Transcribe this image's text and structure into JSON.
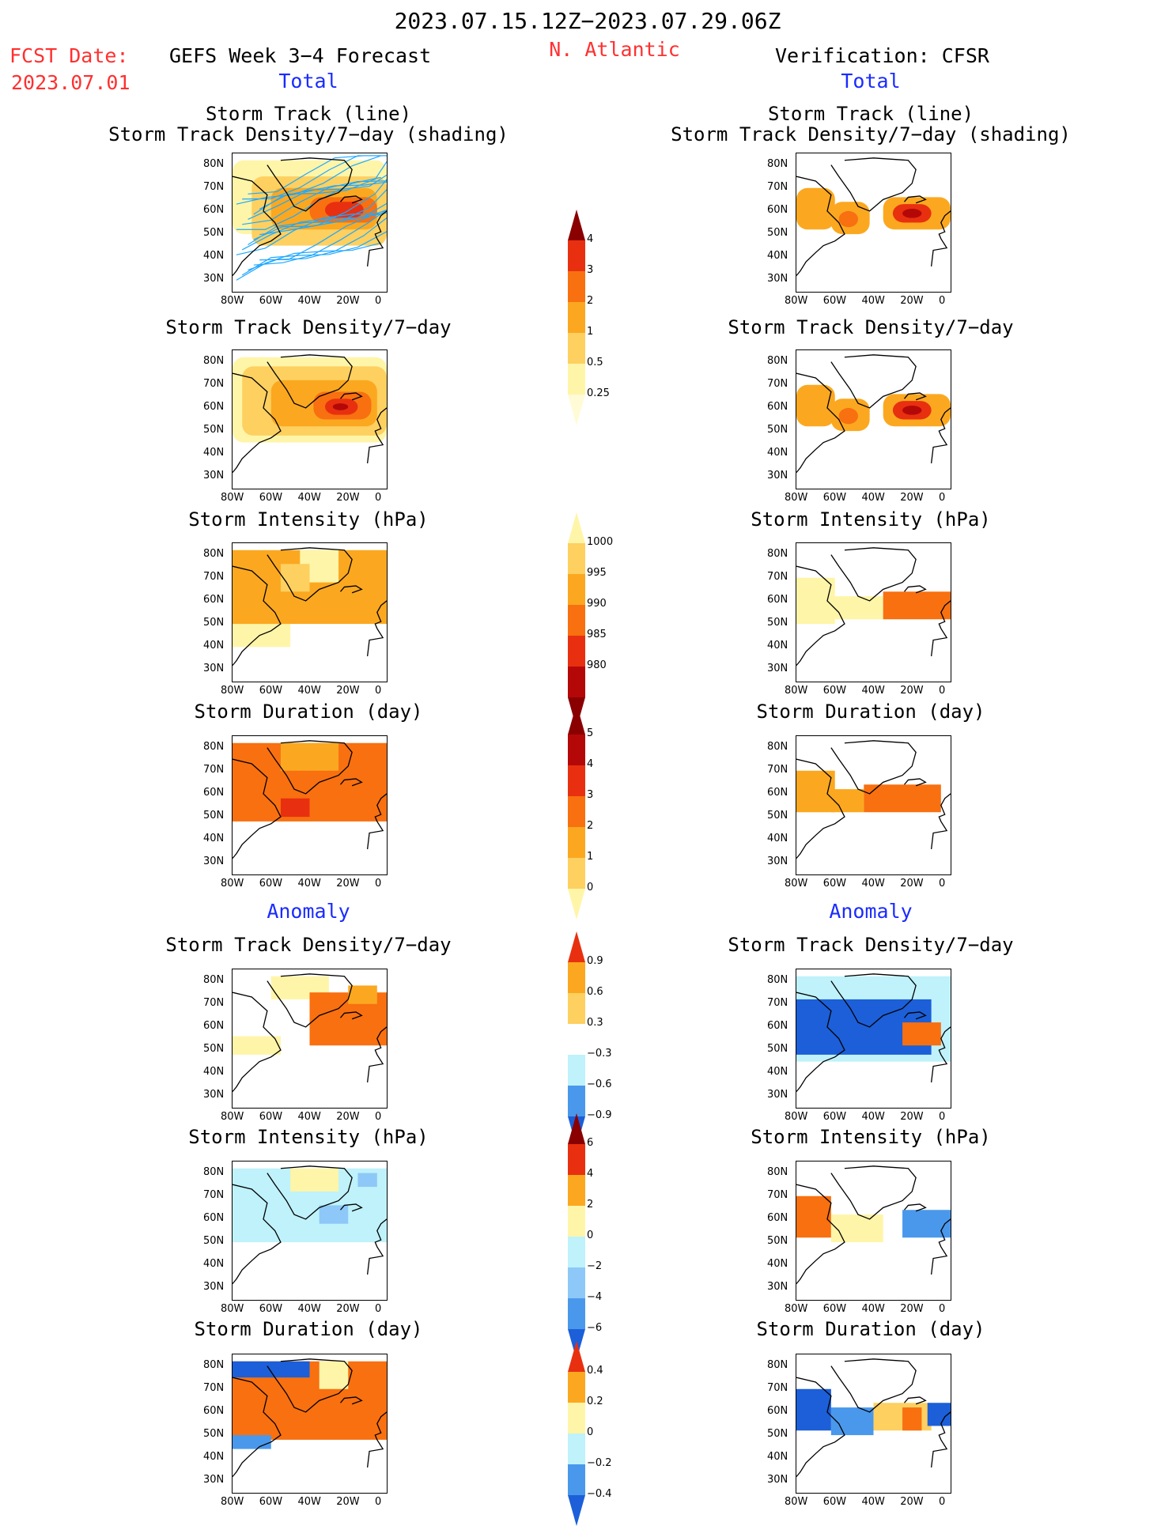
{
  "header": {
    "date_range": "2023.07.15.12Z−2023.07.29.06Z",
    "fcst_label": "FCST Date:",
    "fcst_date": "2023.07.01",
    "model_title": "GEFS Week 3−4 Forecast",
    "region": "N. Atlantic",
    "verification": "Verification: CFSR",
    "total_left": "Total",
    "total_right": "Total",
    "anomaly_left": "Anomaly",
    "anomaly_right": "Anomaly"
  },
  "panel_titles": {
    "track_line": "Storm Track (line)",
    "track_shading": "Storm Track Density/7−day (shading)",
    "density": "Storm Track Density/7−day",
    "intensity": "Storm Intensity (hPa)",
    "duration": "Storm Duration (day)"
  },
  "axes": {
    "lat_ticks": [
      "80N",
      "70N",
      "60N",
      "50N",
      "40N",
      "30N"
    ],
    "lon_ticks": [
      "80W",
      "60W",
      "40W",
      "20W",
      "0"
    ]
  },
  "colors": {
    "c1": "#fff5a8",
    "c2": "#fdd060",
    "c3": "#fba820",
    "c4": "#f87010",
    "c5": "#e83010",
    "c6": "#b40808",
    "c7": "#8a0000",
    "n1": "#bff2fb",
    "n2": "#8ec8f8",
    "n3": "#4a98ec",
    "n4": "#1c5fd8",
    "track": "#1ea8ff",
    "coast": "#000000"
  },
  "chart_data": [
    {
      "type": "heatmap",
      "side": "GEFS",
      "section": "Total",
      "title": "Storm Track (line) / Storm Track Density/7−day (shading)",
      "xlim": [
        -80,
        0
      ],
      "ylim": [
        25,
        85
      ],
      "regions": [
        {
          "lat": [
            50,
            82
          ],
          "lon": [
            -80,
            0
          ],
          "class": 1
        },
        {
          "lat": [
            45,
            75
          ],
          "lon": [
            -70,
            0
          ],
          "class": 2
        },
        {
          "lat": [
            52,
            70
          ],
          "lon": [
            -60,
            -5
          ],
          "class": 3
        },
        {
          "lat": [
            55,
            66
          ],
          "lon": [
            -40,
            -5
          ],
          "class": 4
        },
        {
          "lat": [
            57,
            64
          ],
          "lon": [
            -32,
            -12
          ],
          "class": 5
        }
      ]
    },
    {
      "type": "heatmap",
      "side": "CFSR",
      "section": "Total",
      "title": "Storm Track (line) / Storm Track Density/7−day (shading)",
      "xlim": [
        -80,
        0
      ],
      "ylim": [
        25,
        85
      ],
      "regions": [
        {
          "lat": [
            52,
            70
          ],
          "lon": [
            -80,
            -60
          ],
          "class": 3
        },
        {
          "lat": [
            50,
            64
          ],
          "lon": [
            -62,
            -42
          ],
          "class": 3
        },
        {
          "lat": [
            53,
            60
          ],
          "lon": [
            -58,
            -48
          ],
          "class": 4
        },
        {
          "lat": [
            52,
            66
          ],
          "lon": [
            -35,
            0
          ],
          "class": 3
        },
        {
          "lat": [
            55,
            63
          ],
          "lon": [
            -30,
            -10
          ],
          "class": 5
        },
        {
          "lat": [
            57,
            61
          ],
          "lon": [
            -25,
            -15
          ],
          "class": 6
        }
      ]
    },
    {
      "type": "heatmap",
      "side": "GEFS",
      "section": "Total",
      "title": "Storm Track Density/7−day",
      "xlim": [
        -80,
        0
      ],
      "ylim": [
        25,
        85
      ],
      "regions": [
        {
          "lat": [
            45,
            82
          ],
          "lon": [
            -80,
            0
          ],
          "class": 1
        },
        {
          "lat": [
            48,
            78
          ],
          "lon": [
            -75,
            0
          ],
          "class": 2
        },
        {
          "lat": [
            52,
            72
          ],
          "lon": [
            -60,
            -5
          ],
          "class": 3
        },
        {
          "lat": [
            55,
            67
          ],
          "lon": [
            -38,
            -8
          ],
          "class": 4
        },
        {
          "lat": [
            57,
            64
          ],
          "lon": [
            -32,
            -15
          ],
          "class": 5
        },
        {
          "lat": [
            59,
            62
          ],
          "lon": [
            -28,
            -20
          ],
          "class": 6
        }
      ]
    },
    {
      "type": "heatmap",
      "side": "CFSR",
      "section": "Total",
      "title": "Storm Track Density/7−day",
      "xlim": [
        -80,
        0
      ],
      "ylim": [
        25,
        85
      ],
      "regions": [
        {
          "lat": [
            52,
            70
          ],
          "lon": [
            -80,
            -60
          ],
          "class": 3
        },
        {
          "lat": [
            50,
            64
          ],
          "lon": [
            -62,
            -42
          ],
          "class": 3
        },
        {
          "lat": [
            53,
            60
          ],
          "lon": [
            -58,
            -48
          ],
          "class": 4
        },
        {
          "lat": [
            52,
            66
          ],
          "lon": [
            -35,
            0
          ],
          "class": 3
        },
        {
          "lat": [
            55,
            63
          ],
          "lon": [
            -30,
            -10
          ],
          "class": 5
        },
        {
          "lat": [
            57,
            61
          ],
          "lon": [
            -25,
            -15
          ],
          "class": 6
        }
      ]
    },
    {
      "type": "heatmap",
      "side": "GEFS",
      "section": "Total",
      "title": "Storm Intensity (hPa)",
      "xlim": [
        -80,
        0
      ],
      "ylim": [
        25,
        85
      ],
      "regions": [
        {
          "lat": [
            40,
            52
          ],
          "lon": [
            -80,
            -50
          ],
          "class": 1
        },
        {
          "lat": [
            50,
            82
          ],
          "lon": [
            -80,
            0
          ],
          "class": 3
        },
        {
          "lat": [
            68,
            82
          ],
          "lon": [
            -45,
            -25
          ],
          "class": 1
        },
        {
          "lat": [
            64,
            76
          ],
          "lon": [
            -55,
            -40
          ],
          "class": 2
        }
      ]
    },
    {
      "type": "heatmap",
      "side": "CFSR",
      "section": "Total",
      "title": "Storm Intensity (hPa)",
      "xlim": [
        -80,
        0
      ],
      "ylim": [
        25,
        85
      ],
      "regions": [
        {
          "lat": [
            50,
            70
          ],
          "lon": [
            -80,
            -60
          ],
          "class": 1
        },
        {
          "lat": [
            52,
            62
          ],
          "lon": [
            -62,
            -35
          ],
          "class": 1
        },
        {
          "lat": [
            52,
            64
          ],
          "lon": [
            -35,
            0
          ],
          "class": 4
        }
      ]
    },
    {
      "type": "heatmap",
      "side": "GEFS",
      "section": "Total",
      "title": "Storm Duration (day)",
      "xlim": [
        -80,
        0
      ],
      "ylim": [
        25,
        85
      ],
      "regions": [
        {
          "lat": [
            48,
            82
          ],
          "lon": [
            -80,
            0
          ],
          "class": 4
        },
        {
          "lat": [
            50,
            58
          ],
          "lon": [
            -55,
            -40
          ],
          "class": 5
        },
        {
          "lat": [
            70,
            82
          ],
          "lon": [
            -55,
            -25
          ],
          "class": 3
        }
      ]
    },
    {
      "type": "heatmap",
      "side": "CFSR",
      "section": "Total",
      "title": "Storm Duration (day)",
      "xlim": [
        -80,
        0
      ],
      "ylim": [
        25,
        85
      ],
      "regions": [
        {
          "lat": [
            52,
            70
          ],
          "lon": [
            -80,
            -60
          ],
          "class": 3
        },
        {
          "lat": [
            52,
            62
          ],
          "lon": [
            -62,
            -45
          ],
          "class": 3
        },
        {
          "lat": [
            52,
            64
          ],
          "lon": [
            -45,
            -5
          ],
          "class": 4
        }
      ]
    },
    {
      "type": "heatmap",
      "side": "GEFS",
      "section": "Anomaly",
      "title": "Storm Track Density/7−day",
      "xlim": [
        -80,
        0
      ],
      "ylim": [
        25,
        85
      ],
      "regions": [
        {
          "lat": [
            72,
            82
          ],
          "lon": [
            -60,
            -30
          ],
          "class": 1
        },
        {
          "lat": [
            48,
            56
          ],
          "lon": [
            -80,
            -55
          ],
          "class": 1
        },
        {
          "lat": [
            52,
            75
          ],
          "lon": [
            -40,
            0
          ],
          "class": 4
        },
        {
          "lat": [
            70,
            78
          ],
          "lon": [
            -20,
            -5
          ],
          "class": 3
        }
      ]
    },
    {
      "type": "heatmap",
      "side": "CFSR",
      "section": "Anomaly",
      "title": "Storm Track Density/7−day",
      "xlim": [
        -80,
        0
      ],
      "ylim": [
        25,
        85
      ],
      "regions": [
        {
          "lat": [
            45,
            82
          ],
          "lon": [
            -80,
            0
          ],
          "class": -1
        },
        {
          "lat": [
            48,
            72
          ],
          "lon": [
            -80,
            -10
          ],
          "class": -4
        },
        {
          "lat": [
            52,
            62
          ],
          "lon": [
            -25,
            -5
          ],
          "class": 4
        }
      ]
    },
    {
      "type": "heatmap",
      "side": "GEFS",
      "section": "Anomaly",
      "title": "Storm Intensity (hPa)",
      "xlim": [
        -80,
        0
      ],
      "ylim": [
        25,
        85
      ],
      "regions": [
        {
          "lat": [
            50,
            82
          ],
          "lon": [
            -80,
            0
          ],
          "class": -1
        },
        {
          "lat": [
            72,
            82
          ],
          "lon": [
            -50,
            -25
          ],
          "class": 1
        },
        {
          "lat": [
            58,
            66
          ],
          "lon": [
            -35,
            -20
          ],
          "class": -2
        },
        {
          "lat": [
            74,
            80
          ],
          "lon": [
            -15,
            -5
          ],
          "class": -2
        }
      ]
    },
    {
      "type": "heatmap",
      "side": "CFSR",
      "section": "Anomaly",
      "title": "Storm Intensity (hPa)",
      "xlim": [
        -80,
        0
      ],
      "ylim": [
        25,
        85
      ],
      "regions": [
        {
          "lat": [
            52,
            70
          ],
          "lon": [
            -80,
            -62
          ],
          "class": 4
        },
        {
          "lat": [
            50,
            62
          ],
          "lon": [
            -62,
            -35
          ],
          "class": 1
        },
        {
          "lat": [
            52,
            64
          ],
          "lon": [
            -25,
            0
          ],
          "class": -3
        }
      ]
    },
    {
      "type": "heatmap",
      "side": "GEFS",
      "section": "Anomaly",
      "title": "Storm Duration (day)",
      "xlim": [
        -80,
        0
      ],
      "ylim": [
        25,
        85
      ],
      "regions": [
        {
          "lat": [
            48,
            82
          ],
          "lon": [
            -80,
            0
          ],
          "class": 4
        },
        {
          "lat": [
            75,
            82
          ],
          "lon": [
            -80,
            -40
          ],
          "class": -4
        },
        {
          "lat": [
            44,
            50
          ],
          "lon": [
            -80,
            -60
          ],
          "class": -3
        },
        {
          "lat": [
            70,
            82
          ],
          "lon": [
            -35,
            -20
          ],
          "class": 1
        }
      ]
    },
    {
      "type": "heatmap",
      "side": "CFSR",
      "section": "Anomaly",
      "title": "Storm Duration (day)",
      "xlim": [
        -80,
        0
      ],
      "ylim": [
        25,
        85
      ],
      "regions": [
        {
          "lat": [
            52,
            70
          ],
          "lon": [
            -80,
            -62
          ],
          "class": -4
        },
        {
          "lat": [
            50,
            62
          ],
          "lon": [
            -62,
            -40
          ],
          "class": -3
        },
        {
          "lat": [
            52,
            64
          ],
          "lon": [
            -40,
            -10
          ],
          "class": 2
        },
        {
          "lat": [
            52,
            62
          ],
          "lon": [
            -25,
            -15
          ],
          "class": 4
        },
        {
          "lat": [
            54,
            64
          ],
          "lon": [
            -12,
            0
          ],
          "class": -4
        }
      ]
    }
  ],
  "colorbars": [
    {
      "name": "total-density",
      "labels": [
        "4",
        "3",
        "2",
        "1",
        "0.5",
        "0.25"
      ]
    },
    {
      "name": "total-intensity",
      "labels": [
        "1000",
        "995",
        "990",
        "985",
        "980"
      ]
    },
    {
      "name": "total-duration",
      "labels": [
        "5",
        "4",
        "3",
        "2",
        "1",
        "0"
      ]
    },
    {
      "name": "anom-density",
      "labels": [
        "0.9",
        "0.6",
        "0.3",
        "−0.3",
        "−0.6",
        "−0.9"
      ]
    },
    {
      "name": "anom-intensity",
      "labels": [
        "6",
        "4",
        "2",
        "0",
        "−2",
        "−4",
        "−6"
      ]
    },
    {
      "name": "anom-duration",
      "labels": [
        "0.4",
        "0.2",
        "0",
        "−0.2",
        "−0.4"
      ]
    }
  ]
}
